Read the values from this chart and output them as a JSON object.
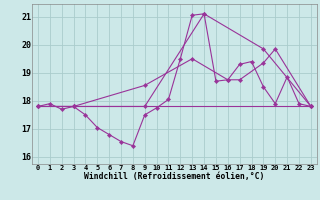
{
  "xlabel": "Windchill (Refroidissement éolien,°C)",
  "bg_color": "#cce8e8",
  "grid_color": "#aacccc",
  "line_color": "#993399",
  "xlim": [
    -0.5,
    23.5
  ],
  "ylim": [
    15.75,
    21.45
  ],
  "xticks": [
    0,
    1,
    2,
    3,
    4,
    5,
    6,
    7,
    8,
    9,
    10,
    11,
    12,
    13,
    14,
    15,
    16,
    17,
    18,
    19,
    20,
    21,
    22,
    23
  ],
  "yticks": [
    16,
    17,
    18,
    19,
    20,
    21
  ],
  "series1_x": [
    0,
    1,
    2,
    3,
    4,
    5,
    6,
    7,
    8,
    9,
    10,
    11,
    12,
    13,
    14,
    15,
    16,
    17,
    18,
    19,
    20,
    21,
    22,
    23
  ],
  "series1_y": [
    17.8,
    17.9,
    17.7,
    17.8,
    17.5,
    17.05,
    16.8,
    16.55,
    16.4,
    17.5,
    17.75,
    18.05,
    19.5,
    21.05,
    21.1,
    18.7,
    18.75,
    19.3,
    19.4,
    18.5,
    17.9,
    18.85,
    17.9,
    17.8
  ],
  "series2_x": [
    0,
    3,
    9,
    14,
    19,
    23
  ],
  "series2_y": [
    17.8,
    17.8,
    17.8,
    21.1,
    19.85,
    17.8
  ],
  "series3_x": [
    0,
    23
  ],
  "series3_y": [
    17.8,
    17.8
  ],
  "series4_x": [
    0,
    3,
    9,
    13,
    16,
    17,
    19,
    20,
    23
  ],
  "series4_y": [
    17.8,
    17.8,
    18.55,
    19.5,
    18.75,
    18.75,
    19.35,
    19.85,
    17.8
  ]
}
